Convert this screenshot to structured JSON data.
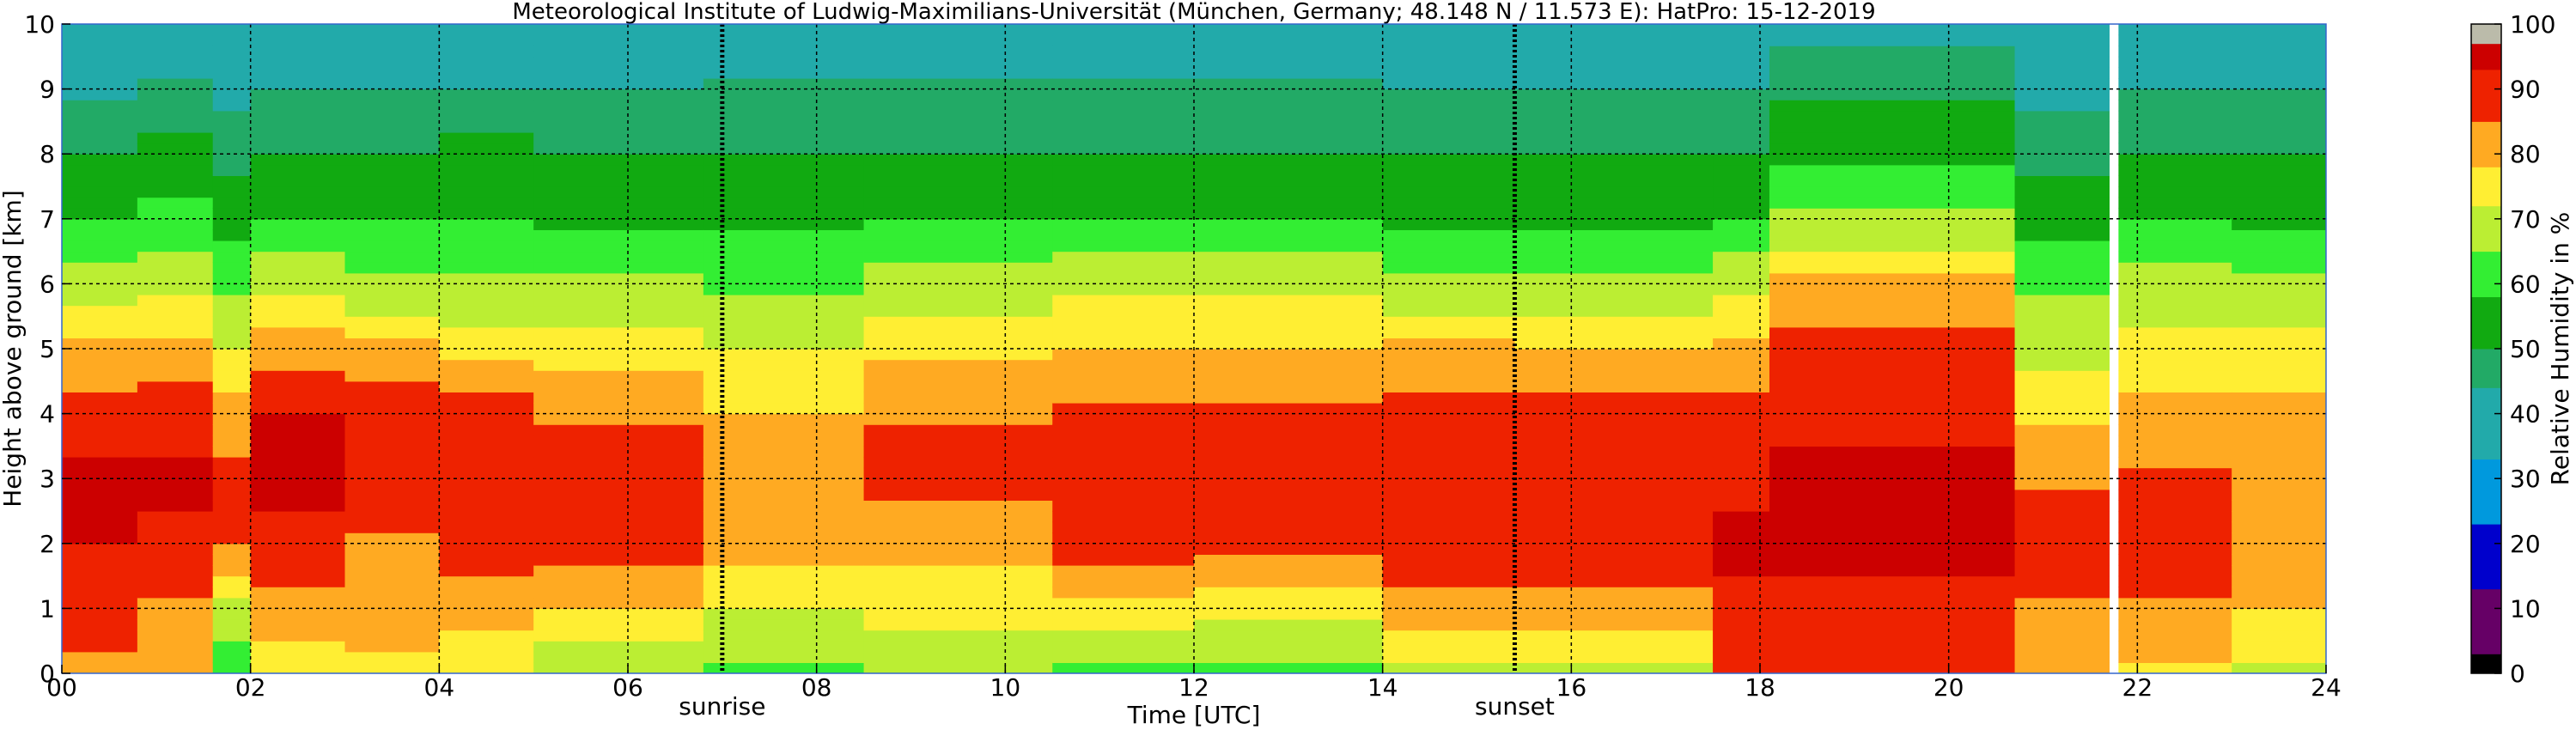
{
  "chart_data": {
    "type": "heatmap",
    "title": "Meteorological Institute of Ludwig-Maximilians-Universität (München, Germany; 48.148 N / 11.573 E):    HatPro: 15-12-2019",
    "xlabel": "Time [UTC]",
    "ylabel": "Height above ground [km]",
    "colorbar_label": "Relative Humidity in %",
    "xlim": [
      0,
      24
    ],
    "ylim": [
      0,
      10
    ],
    "x_ticks": [
      0,
      2,
      4,
      6,
      8,
      10,
      12,
      14,
      16,
      18,
      20,
      22,
      24
    ],
    "x_tick_labels": [
      "00",
      "02",
      "04",
      "06",
      "08",
      "10",
      "12",
      "14",
      "16",
      "18",
      "20",
      "22",
      "24"
    ],
    "y_ticks": [
      0,
      1,
      2,
      3,
      4,
      5,
      6,
      7,
      8,
      9,
      10
    ],
    "y_tick_labels": [
      "0",
      "1",
      "2",
      "3",
      "4",
      "5",
      "6",
      "7",
      "8",
      "9",
      "10"
    ],
    "colorbar_ticks": [
      0,
      10,
      20,
      30,
      40,
      50,
      60,
      70,
      80,
      90,
      100
    ],
    "colorbar_tick_labels": [
      "0",
      "10",
      "20",
      "30",
      "40",
      "50",
      "60",
      "70",
      "80",
      "90",
      "100"
    ],
    "grid": true,
    "markers": [
      {
        "label": "sunrise",
        "x": 7.0
      },
      {
        "label": "sunset",
        "x": 15.4
      }
    ],
    "missing_data_x": 21.75,
    "colorbar_colors": [
      {
        "from": 0,
        "to": 3,
        "color": "#000000"
      },
      {
        "from": 3,
        "to": 13,
        "color": "#660066"
      },
      {
        "from": 13,
        "to": 23,
        "color": "#0000cc"
      },
      {
        "from": 23,
        "to": 33,
        "color": "#0099dd"
      },
      {
        "from": 33,
        "to": 44,
        "color": "#22aaaa"
      },
      {
        "from": 44,
        "to": 50,
        "color": "#22aa66"
      },
      {
        "from": 50,
        "to": 58,
        "color": "#11aa11"
      },
      {
        "from": 58,
        "to": 65,
        "color": "#33ee33"
      },
      {
        "from": 65,
        "to": 72,
        "color": "#bbee33"
      },
      {
        "from": 72,
        "to": 78,
        "color": "#ffee33"
      },
      {
        "from": 78,
        "to": 85,
        "color": "#ffaa22"
      },
      {
        "from": 85,
        "to": 93,
        "color": "#ee2200"
      },
      {
        "from": 93,
        "to": 97,
        "color": "#cc0000"
      },
      {
        "from": 97,
        "to": 100,
        "color": "#bbbbaa"
      }
    ],
    "humidity_profiles": [
      {
        "t_start": 0.0,
        "t_end": 0.8,
        "rh": [
          84,
          87,
          93,
          95,
          88,
          79,
          68,
          58,
          50,
          42,
          33
        ]
      },
      {
        "t_start": 0.8,
        "t_end": 1.6,
        "rh": [
          80,
          84,
          92,
          94,
          90,
          80,
          70,
          60,
          52,
          45,
          38
        ]
      },
      {
        "t_start": 1.6,
        "t_end": 2.0,
        "rh": [
          60,
          70,
          85,
          88,
          80,
          72,
          63,
          55,
          48,
          42,
          35
        ]
      },
      {
        "t_start": 2.0,
        "t_end": 3.0,
        "rh": [
          75,
          82,
          92,
          94,
          93,
          82,
          70,
          58,
          50,
          44,
          38
        ]
      },
      {
        "t_start": 3.0,
        "t_end": 4.0,
        "rh": [
          76,
          82,
          84,
          88,
          90,
          80,
          66,
          58,
          50,
          44,
          37
        ]
      },
      {
        "t_start": 4.0,
        "t_end": 5.0,
        "rh": [
          72,
          80,
          90,
          92,
          88,
          76,
          66,
          58,
          52,
          44,
          38
        ]
      },
      {
        "t_start": 5.0,
        "t_end": 6.8,
        "rh": [
          66,
          78,
          88,
          90,
          84,
          74,
          66,
          56,
          50,
          44,
          38
        ]
      },
      {
        "t_start": 6.8,
        "t_end": 8.5,
        "rh": [
          64,
          72,
          80,
          84,
          78,
          72,
          64,
          56,
          50,
          45,
          40
        ]
      },
      {
        "t_start": 8.5,
        "t_end": 10.5,
        "rh": [
          66,
          74,
          80,
          88,
          84,
          76,
          68,
          58,
          50,
          45,
          40
        ]
      },
      {
        "t_start": 10.5,
        "t_end": 12.0,
        "rh": [
          62,
          76,
          88,
          90,
          86,
          78,
          70,
          58,
          50,
          45,
          40
        ]
      },
      {
        "t_start": 12.0,
        "t_end": 14.0,
        "rh": [
          62,
          74,
          88,
          90,
          86,
          78,
          70,
          58,
          50,
          45,
          40
        ]
      },
      {
        "t_start": 14.0,
        "t_end": 15.4,
        "rh": [
          70,
          82,
          92,
          92,
          88,
          80,
          66,
          56,
          50,
          44,
          38
        ]
      },
      {
        "t_start": 15.4,
        "t_end": 17.5,
        "rh": [
          70,
          82,
          90,
          92,
          88,
          78,
          66,
          56,
          50,
          44,
          38
        ]
      },
      {
        "t_start": 17.5,
        "t_end": 18.1,
        "rh": [
          90,
          92,
          94,
          92,
          88,
          80,
          70,
          58,
          50,
          44,
          38
        ]
      },
      {
        "t_start": 18.1,
        "t_end": 20.7,
        "rh": [
          88,
          92,
          94,
          94,
          92,
          88,
          80,
          66,
          56,
          48,
          42
        ]
      },
      {
        "t_start": 20.7,
        "t_end": 21.7,
        "rh": [
          80,
          84,
          88,
          84,
          76,
          70,
          64,
          55,
          48,
          42,
          36
        ]
      },
      {
        "t_start": 21.8,
        "t_end": 23.0,
        "rh": [
          76,
          84,
          88,
          86,
          80,
          74,
          68,
          58,
          50,
          44,
          38
        ]
      },
      {
        "t_start": 23.0,
        "t_end": 24.0,
        "rh": [
          70,
          78,
          84,
          82,
          80,
          74,
          66,
          56,
          50,
          44,
          38
        ]
      }
    ]
  }
}
